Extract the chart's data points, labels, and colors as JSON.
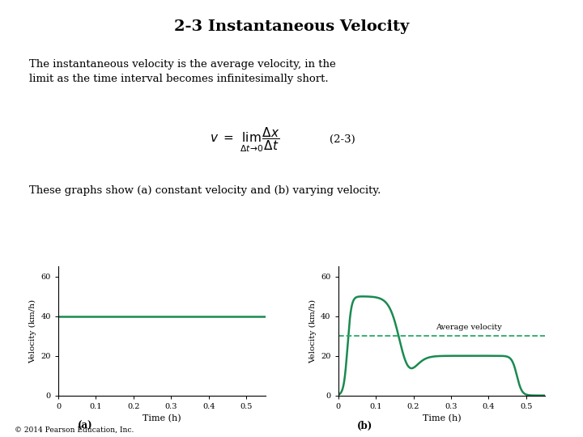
{
  "title": "2-3 Instantaneous Velocity",
  "title_fontsize": 14,
  "body_text1": "The instantaneous velocity is the average velocity, in the\nlimit as the time interval becomes infinitesimally short.",
  "body_text2": "These graphs show (a) constant velocity and (b) varying velocity.",
  "formula": "$v \\ = \\ \\lim_{\\Delta t \\to 0} \\dfrac{\\Delta x}{\\Delta t}$",
  "formula_tag": "(2-3)",
  "copyright": "© 2014 Pearson Education, Inc.",
  "graph_color": "#1a8a50",
  "avg_color": "#2aaa66",
  "background": "#ffffff",
  "graph_a_ylabel": "Velocity (km/h)",
  "graph_a_xlabel": "Time (h)",
  "graph_a_label": "(a)",
  "graph_b_ylabel": "Velocity (km/h)",
  "graph_b_xlabel": "Time (h)",
  "graph_b_label": "(b)",
  "graph_b_avg_label": "Average velocity",
  "graph_b_avg_value": 30,
  "const_velocity": 40,
  "ylim": [
    0,
    65
  ],
  "xlim": [
    0,
    0.55
  ],
  "yticks": [
    0,
    20,
    40,
    60
  ],
  "xticks": [
    0,
    0.1,
    0.2,
    0.3,
    0.4,
    0.5
  ]
}
